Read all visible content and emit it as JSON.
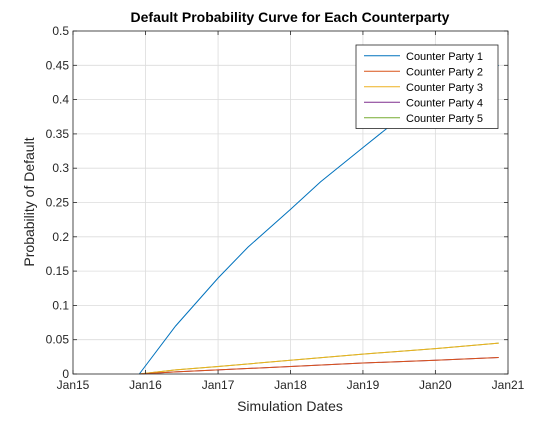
{
  "chart_data": {
    "type": "line",
    "title": "Default Probability Curve for Each Counterparty",
    "xlabel": "Simulation Dates",
    "ylabel": "Probability of Default",
    "x_ticks": [
      "Jan15",
      "Jan16",
      "Jan17",
      "Jan18",
      "Jan19",
      "Jan20",
      "Jan21"
    ],
    "x_range": [
      "2015-01-01",
      "2021-01-01"
    ],
    "ylim": [
      0,
      0.5
    ],
    "y_ticks": [
      0,
      0.05,
      0.1,
      0.15,
      0.2,
      0.25,
      0.3,
      0.35,
      0.4,
      0.45,
      0.5
    ],
    "grid": true,
    "legend_position": "top-right",
    "series": [
      {
        "name": "Counter Party 1",
        "color": "#0072BD",
        "x": [
          "2015-12-01",
          "2016-06-01",
          "2017-01-01",
          "2017-06-01",
          "2018-01-01",
          "2018-06-01",
          "2019-01-01",
          "2019-06-01",
          "2020-01-01",
          "2020-11-15"
        ],
        "y": [
          0.0,
          0.07,
          0.14,
          0.185,
          0.24,
          0.28,
          0.33,
          0.365,
          0.405,
          0.45
        ]
      },
      {
        "name": "Counter Party 2",
        "color": "#D95319",
        "x": [
          "2015-12-01",
          "2016-06-01",
          "2017-01-01",
          "2018-01-01",
          "2019-01-01",
          "2020-01-01",
          "2020-11-15"
        ],
        "y": [
          0.0,
          0.003,
          0.006,
          0.011,
          0.016,
          0.02,
          0.024
        ]
      },
      {
        "name": "Counter Party 3",
        "color": "#EDB120",
        "x": [
          "2015-12-01",
          "2016-06-01",
          "2017-01-01",
          "2018-01-01",
          "2019-01-01",
          "2020-01-01",
          "2020-11-15"
        ],
        "y": [
          0.0,
          0.006,
          0.011,
          0.02,
          0.029,
          0.037,
          0.045
        ]
      },
      {
        "name": "Counter Party 4",
        "color": "#7E2F8E",
        "x": [
          "2015-12-01",
          "2016-06-01",
          "2017-01-01",
          "2018-01-01",
          "2019-01-01",
          "2020-01-01",
          "2020-11-15"
        ],
        "y": [
          0.0,
          0.003,
          0.006,
          0.011,
          0.016,
          0.02,
          0.024
        ]
      },
      {
        "name": "Counter Party 5",
        "color": "#77AC30",
        "x": [
          "2015-12-01",
          "2016-06-01",
          "2017-01-01",
          "2018-01-01",
          "2019-01-01",
          "2020-01-01",
          "2020-11-15"
        ],
        "y": [
          0.0,
          0.006,
          0.011,
          0.02,
          0.029,
          0.037,
          0.045
        ]
      }
    ]
  }
}
